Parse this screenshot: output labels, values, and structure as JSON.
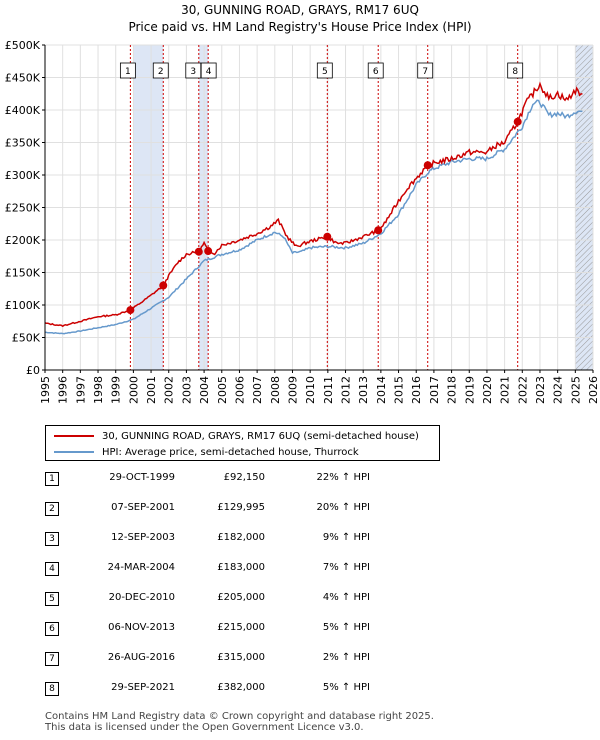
{
  "chart_data": {
    "type": "line",
    "title": "30, GUNNING ROAD, GRAYS, RM17 6UQ",
    "subtitle": "Price paid vs. HM Land Registry's House Price Index (HPI)",
    "x_ticks": [
      "1995",
      "1996",
      "1997",
      "1998",
      "1999",
      "2000",
      "2001",
      "2002",
      "2003",
      "2004",
      "2005",
      "2006",
      "2007",
      "2008",
      "2009",
      "2010",
      "2011",
      "2012",
      "2013",
      "2014",
      "2015",
      "2016",
      "2017",
      "2018",
      "2019",
      "2020",
      "2021",
      "2022",
      "2023",
      "2024",
      "2025",
      "2026"
    ],
    "y_ticks": [
      "£0",
      "£50K",
      "£100K",
      "£150K",
      "£200K",
      "£250K",
      "£300K",
      "£350K",
      "£400K",
      "£450K",
      "£500K"
    ],
    "xlim": [
      1995,
      2026
    ],
    "ylim": [
      0,
      500000
    ],
    "colors": {
      "property": "#cc0000",
      "hpi": "#6699cc",
      "shade": "#dde6f5",
      "marker": "#cc0000",
      "vline": "#cc0000"
    },
    "series": [
      {
        "name": "30, GUNNING ROAD, GRAYS, RM17 6UQ (semi-detached house)",
        "x": [
          1995,
          1996,
          1997,
          1998,
          1999,
          1999.83,
          2000.5,
          2001,
          2001.69,
          2002,
          2002.5,
          2003,
          2003.7,
          2004,
          2004.23,
          2004.6,
          2005,
          2006,
          2007,
          2007.7,
          2008.2,
          2008.7,
          2009.2,
          2010,
          2010.97,
          2011.5,
          2012,
          2012.5,
          2013,
          2013.85,
          2014.2,
          2015,
          2015.5,
          2016,
          2016.65,
          2017.2,
          2018,
          2019,
          2019.5,
          2020,
          2020.5,
          2021,
          2021.74,
          2022.2,
          2022.6,
          2023,
          2023.5,
          2024,
          2024.5,
          2025,
          2025.4
        ],
        "values": [
          72000,
          68000,
          75000,
          82000,
          85000,
          92150,
          105000,
          115000,
          129995,
          145000,
          165000,
          178000,
          182000,
          195000,
          183000,
          180000,
          192000,
          200000,
          210000,
          220000,
          230000,
          205000,
          190000,
          198000,
          205000,
          195000,
          195000,
          200000,
          205000,
          215000,
          225000,
          260000,
          280000,
          295000,
          315000,
          320000,
          325000,
          335000,
          335000,
          335000,
          345000,
          350000,
          382000,
          410000,
          425000,
          440000,
          418000,
          425000,
          415000,
          430000,
          425000
        ]
      },
      {
        "name": "HPI: Average price, semi-detached house, Thurrock",
        "x": [
          1995,
          1996,
          1997,
          1998,
          1999,
          2000,
          2001,
          2002,
          2003,
          2004,
          2005,
          2006,
          2007,
          2008,
          2008.5,
          2009,
          2009.5,
          2010,
          2011,
          2012,
          2013,
          2014,
          2015,
          2016,
          2016.7,
          2017,
          2018,
          2019,
          2020,
          2021,
          2022,
          2022.6,
          2023,
          2023.5,
          2024,
          2024.5,
          2025,
          2025.4
        ],
        "values": [
          58000,
          56000,
          60000,
          65000,
          70000,
          78000,
          95000,
          112000,
          140000,
          168000,
          178000,
          185000,
          200000,
          212000,
          205000,
          180000,
          182000,
          188000,
          190000,
          188000,
          195000,
          210000,
          240000,
          285000,
          305000,
          310000,
          320000,
          325000,
          325000,
          340000,
          375000,
          410000,
          412000,
          392000,
          395000,
          390000,
          398000,
          398000
        ]
      }
    ],
    "sales": [
      {
        "n": "1",
        "date": "29-OCT-1999",
        "price": "£92,150",
        "hpi": "22% ↑ HPI",
        "x": 1999.83,
        "y": 92150
      },
      {
        "n": "2",
        "date": "07-SEP-2001",
        "price": "£129,995",
        "hpi": "20% ↑ HPI",
        "x": 2001.69,
        "y": 129995
      },
      {
        "n": "3",
        "date": "12-SEP-2003",
        "price": "£182,000",
        "hpi": "9% ↑ HPI",
        "x": 2003.7,
        "y": 182000
      },
      {
        "n": "4",
        "date": "24-MAR-2004",
        "price": "£183,000",
        "hpi": "7% ↑ HPI",
        "x": 2004.23,
        "y": 183000
      },
      {
        "n": "5",
        "date": "20-DEC-2010",
        "price": "£205,000",
        "hpi": "4% ↑ HPI",
        "x": 2010.97,
        "y": 205000
      },
      {
        "n": "6",
        "date": "06-NOV-2013",
        "price": "£215,000",
        "hpi": "5% ↑ HPI",
        "x": 2013.85,
        "y": 215000
      },
      {
        "n": "7",
        "date": "26-AUG-2016",
        "price": "£315,000",
        "hpi": "2% ↑ HPI",
        "x": 2016.65,
        "y": 315000
      },
      {
        "n": "8",
        "date": "29-SEP-2021",
        "price": "£382,000",
        "hpi": "5% ↑ HPI",
        "x": 2021.74,
        "y": 382000
      }
    ],
    "shaded_spans": [
      [
        2000,
        2001.69
      ],
      [
        2003.7,
        2004.23
      ],
      [
        2025,
        2026
      ]
    ],
    "hatch_span": [
      2025,
      2026
    ]
  },
  "legend": {
    "property": "30, GUNNING ROAD, GRAYS, RM17 6UQ (semi-detached house)",
    "hpi": "HPI: Average price, semi-detached house, Thurrock"
  },
  "footer": {
    "line1": "Contains HM Land Registry data © Crown copyright and database right 2025.",
    "line2": "This data is licensed under the Open Government Licence v3.0."
  }
}
